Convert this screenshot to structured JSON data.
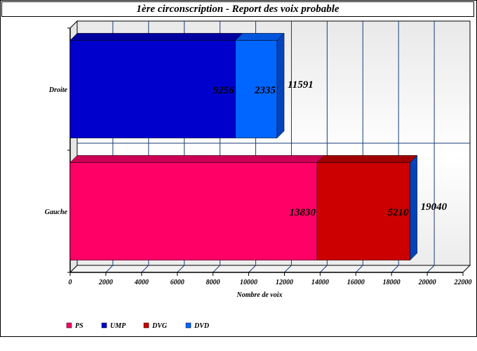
{
  "chart_data": {
    "type": "bar",
    "orientation": "horizontal",
    "stacked": true,
    "title": "1ère circonscription - Report des voix probable",
    "xlabel": "Nombre de voix",
    "ylabel": "",
    "xlim": [
      0,
      22000
    ],
    "x_ticks": [
      "0",
      "2000",
      "4000",
      "6000",
      "8000",
      "10000",
      "12000",
      "14000",
      "16000",
      "18000",
      "20000",
      "22000"
    ],
    "categories": [
      "Droite",
      "Gauche"
    ],
    "series": [
      {
        "name": "PS",
        "values": [
          0,
          13830
        ],
        "color": "#ff0066",
        "top_color": "#cc0055",
        "side_color": "#990040"
      },
      {
        "name": "UMP",
        "values": [
          9256,
          0
        ],
        "color": "#0000cc",
        "top_color": "#0000a0",
        "side_color": "#000077"
      },
      {
        "name": "DVG",
        "values": [
          0,
          5210
        ],
        "color": "#cc0000",
        "top_color": "#a00000",
        "side_color": "#770000"
      },
      {
        "name": "DVD",
        "values": [
          2335,
          0
        ],
        "color": "#0066ff",
        "top_color": "#0055dd",
        "side_color": "#0044bb"
      }
    ],
    "segment_labels": [
      [
        "9256",
        "2335"
      ],
      [
        "13830",
        "5210"
      ]
    ],
    "totals": [
      "11591",
      "19040"
    ],
    "grid": true,
    "legend_position": "bottom-left"
  }
}
